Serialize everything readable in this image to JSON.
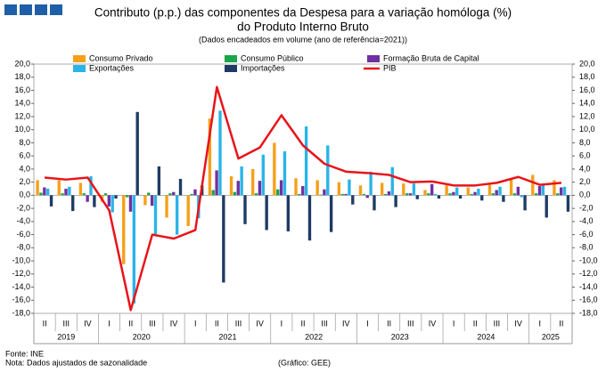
{
  "chart_data": {
    "type": "bar",
    "title": "Contributo (p.p.) das componentes da Despesa para a variação homóloga (%)",
    "subtitle": "do Produto Interno Bruto",
    "note_top": "(Dados encadeados em volume (ano de referência=2021))",
    "categories": [
      "II",
      "III",
      "IV",
      "I",
      "II",
      "III",
      "IV",
      "I",
      "II",
      "III",
      "IV",
      "I",
      "II",
      "III",
      "IV",
      "I",
      "II",
      "III",
      "IV",
      "I",
      "II",
      "III",
      "IV",
      "I",
      "II"
    ],
    "years": [
      "2019",
      "2020",
      "2021",
      "2022",
      "2023",
      "2024",
      "2025"
    ],
    "series": [
      {
        "name": "Consumo Privado",
        "type": "bar",
        "color": "#f5a01a",
        "values": [
          2.3,
          2.3,
          1.9,
          -1.0,
          -10.5,
          -1.5,
          -3.4,
          -4.7,
          11.7,
          2.9,
          4.0,
          8.0,
          2.6,
          2.3,
          2.0,
          1.5,
          1.9,
          1.8,
          0.8,
          1.5,
          1.2,
          1.6,
          2.4,
          3.1,
          2.3
        ]
      },
      {
        "name": "Consumo Público",
        "type": "bar",
        "color": "#1aa64a",
        "values": [
          0.4,
          0.3,
          0.3,
          0.3,
          -0.3,
          0.4,
          0.3,
          0.2,
          0.8,
          0.5,
          0.3,
          0.9,
          0.2,
          0.1,
          0.2,
          0.2,
          0.2,
          0.3,
          0.3,
          0.3,
          0.2,
          0.3,
          0.3,
          0.3,
          0.3
        ]
      },
      {
        "name": "Formação Bruta de Capital",
        "type": "bar",
        "color": "#7030a0",
        "values": [
          1.2,
          1.0,
          -1.0,
          -1.7,
          -2.5,
          -1.6,
          0.5,
          0.9,
          3.8,
          2.2,
          2.2,
          2.3,
          1.4,
          0.9,
          0.2,
          -0.4,
          0.6,
          0.3,
          1.7,
          0.5,
          0.5,
          0.8,
          1.3,
          1.4,
          1.2
        ]
      },
      {
        "name": "Exportações",
        "type": "bar",
        "color": "#29b4e8",
        "values": [
          1.0,
          1.3,
          2.9,
          -2.6,
          -16.5,
          -6.2,
          -6.0,
          -3.5,
          12.9,
          4.4,
          6.2,
          6.7,
          10.5,
          7.6,
          2.4,
          3.6,
          4.3,
          1.8,
          0.2,
          1.2,
          1.0,
          1.3,
          -0.3,
          1.7,
          1.3
        ]
      },
      {
        "name": "Importações",
        "type": "bar",
        "color": "#1f3b64",
        "values": [
          -1.7,
          -2.4,
          -1.8,
          -0.5,
          12.7,
          4.4,
          2.5,
          1.5,
          -13.3,
          -4.4,
          -5.3,
          -5.5,
          -6.9,
          -5.6,
          -1.4,
          -2.3,
          -1.8,
          -0.6,
          -0.5,
          -0.5,
          -0.8,
          -1.0,
          -2.3,
          -3.4,
          -2.5
        ]
      },
      {
        "name": "PIB",
        "type": "line",
        "color": "#e8141a",
        "values": [
          2.7,
          2.4,
          2.7,
          -2.3,
          -17.5,
          -6.0,
          -6.6,
          -5.3,
          16.5,
          5.6,
          7.3,
          12.2,
          7.6,
          4.8,
          3.6,
          3.4,
          3.1,
          2.0,
          2.1,
          1.5,
          1.5,
          1.9,
          2.8,
          1.6,
          1.9
        ]
      }
    ],
    "ylim": [
      -18,
      20
    ],
    "yticks": [
      {
        "value": 20,
        "label": "20,0"
      },
      {
        "value": 18,
        "label": "18,0"
      },
      {
        "value": 16,
        "label": "16,0"
      },
      {
        "value": 14,
        "label": "14,0"
      },
      {
        "value": 12,
        "label": "12,0"
      },
      {
        "value": 10,
        "label": "10,0"
      },
      {
        "value": 8,
        "label": "8,0"
      },
      {
        "value": 6,
        "label": "6,0"
      },
      {
        "value": 4,
        "label": "4,0"
      },
      {
        "value": 2,
        "label": "2,0"
      },
      {
        "value": 0,
        "label": "0,0"
      },
      {
        "value": -2,
        "label": "-2,0"
      },
      {
        "value": -4,
        "label": "-4,0"
      },
      {
        "value": -6,
        "label": "-6,0"
      },
      {
        "value": -8,
        "label": "-8,0"
      },
      {
        "value": -10,
        "label": "-10,0"
      },
      {
        "value": -12,
        "label": "-12,0"
      },
      {
        "value": -14,
        "label": "-14,0"
      },
      {
        "value": -16,
        "label": "-16,0"
      },
      {
        "value": -18,
        "label": "-18,0"
      }
    ],
    "source": "Fonte:  INE",
    "note": "Nota: Dados ajustados de sazonalidade",
    "credit": "(Gráfico: GEE)"
  }
}
